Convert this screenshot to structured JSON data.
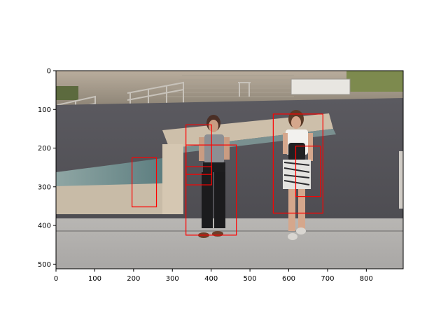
{
  "figure": {
    "image_description_hidden": false,
    "x_range": [
      0,
      895
    ],
    "y_range": [
      0,
      512
    ],
    "x_ticks": [
      0,
      100,
      200,
      300,
      400,
      500,
      600,
      700,
      800
    ],
    "y_ticks": [
      0,
      100,
      200,
      300,
      400,
      500
    ],
    "box_color": "#ff0000"
  },
  "chart_data": {
    "type": "scatter",
    "title": "",
    "xlabel": "",
    "ylabel": "",
    "xlim": [
      0,
      895
    ],
    "ylim": [
      512,
      0
    ],
    "grid": false,
    "boxes": [
      {
        "x0": 196,
        "y0": 225,
        "x1": 259,
        "y1": 352
      },
      {
        "x0": 335,
        "y0": 140,
        "x1": 401,
        "y1": 268
      },
      {
        "x0": 335,
        "y0": 248,
        "x1": 401,
        "y1": 295
      },
      {
        "x0": 335,
        "y0": 192,
        "x1": 465,
        "y1": 425
      },
      {
        "x0": 560,
        "y0": 112,
        "x1": 688,
        "y1": 368
      },
      {
        "x0": 618,
        "y0": 195,
        "x1": 682,
        "y1": 325
      }
    ]
  }
}
